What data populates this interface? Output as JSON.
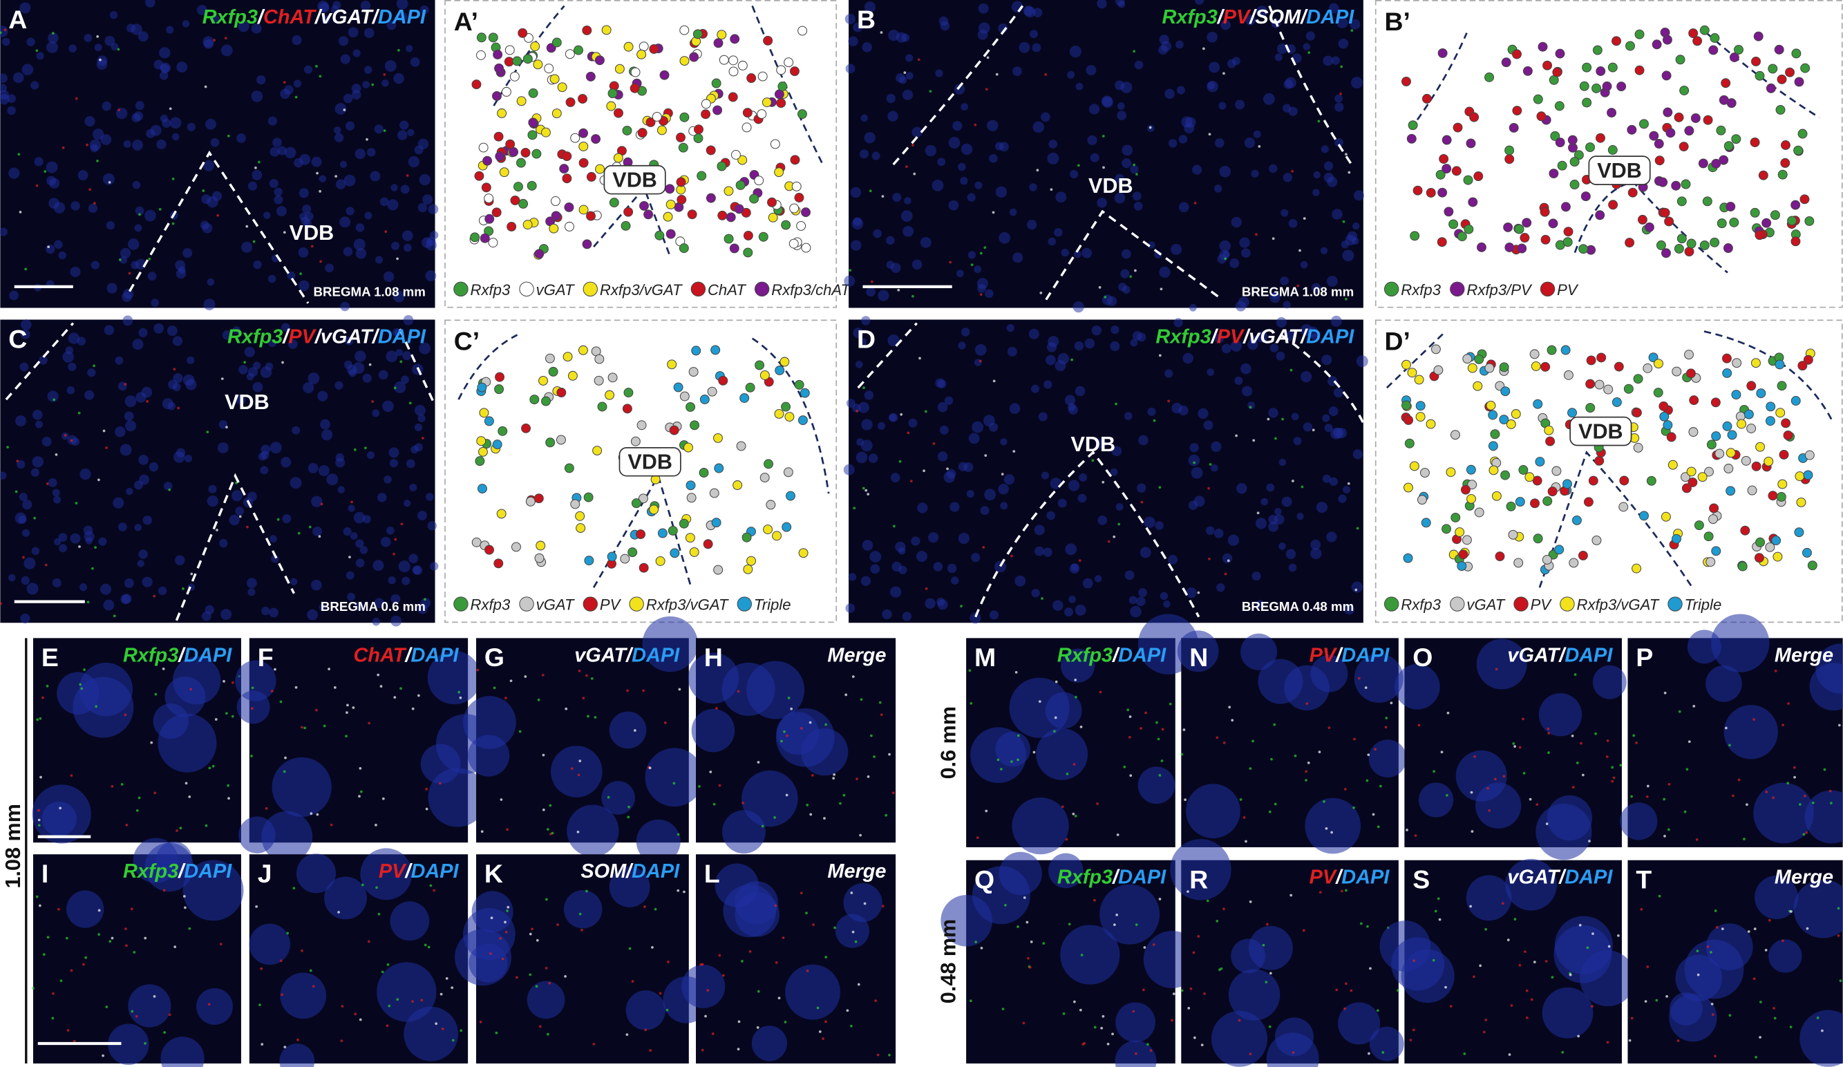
{
  "panels": [
    {
      "letter": "A",
      "kind": "image",
      "label": [
        {
          "text": "Rxfp3",
          "color": "#33cc33"
        },
        {
          "text": "/",
          "color": "#ffffff"
        },
        {
          "text": "ChAT",
          "color": "#e02020"
        },
        {
          "text": "/vGAT/",
          "color": "#ffffff"
        },
        {
          "text": "DAPI",
          "color": "#2a9df4"
        }
      ],
      "region": "VDB",
      "bregma": "BREGMA 1.08 mm"
    },
    {
      "letter": "A’",
      "kind": "schematic",
      "region": "VDB",
      "legend": [
        {
          "text": "Rxfp3",
          "color": "#3a9a3a"
        },
        {
          "text": "vGAT",
          "color": "#ffffff"
        },
        {
          "text": "Rxfp3/vGAT",
          "color": "#f2e21c"
        },
        {
          "text": "ChAT",
          "color": "#c8141e"
        },
        {
          "text": "Rxfp3/chAT",
          "color": "#7a1a8c"
        }
      ]
    },
    {
      "letter": "B",
      "kind": "image",
      "label": [
        {
          "text": "Rxfp3",
          "color": "#33cc33"
        },
        {
          "text": "/",
          "color": "#ffffff"
        },
        {
          "text": "PV",
          "color": "#e02020"
        },
        {
          "text": "/SOM/",
          "color": "#ffffff"
        },
        {
          "text": "DAPI",
          "color": "#2a9df4"
        }
      ],
      "region": "VDB",
      "bregma": "BREGMA 1.08 mm"
    },
    {
      "letter": "B’",
      "kind": "schematic",
      "region": "VDB",
      "legend": [
        {
          "text": "Rxfp3",
          "color": "#3a9a3a"
        },
        {
          "text": "Rxfp3/PV",
          "color": "#7a1a8c"
        },
        {
          "text": "PV",
          "color": "#c8141e"
        }
      ]
    },
    {
      "letter": "C",
      "kind": "image",
      "label": [
        {
          "text": "Rxfp3",
          "color": "#33cc33"
        },
        {
          "text": "/",
          "color": "#ffffff"
        },
        {
          "text": "PV",
          "color": "#e02020"
        },
        {
          "text": "/vGAT/",
          "color": "#ffffff"
        },
        {
          "text": "DAPI",
          "color": "#2a9df4"
        }
      ],
      "region": "VDB",
      "bregma": "BREGMA 0.6 mm"
    },
    {
      "letter": "C’",
      "kind": "schematic",
      "region": "VDB",
      "legend": [
        {
          "text": "Rxfp3",
          "color": "#3a9a3a"
        },
        {
          "text": "vGAT",
          "color": "#c8c8c8"
        },
        {
          "text": "PV",
          "color": "#c8141e"
        },
        {
          "text": "Rxfp3/vGAT",
          "color": "#f2e21c"
        },
        {
          "text": "Triple",
          "color": "#1f9bd1"
        }
      ]
    },
    {
      "letter": "D",
      "kind": "image",
      "label": [
        {
          "text": "Rxfp3",
          "color": "#33cc33"
        },
        {
          "text": "/",
          "color": "#ffffff"
        },
        {
          "text": "PV",
          "color": "#e02020"
        },
        {
          "text": "/vGAT/",
          "color": "#ffffff"
        },
        {
          "text": "DAPI",
          "color": "#2a9df4"
        }
      ],
      "region": "VDB",
      "bregma": "BREGMA 0.48 mm"
    },
    {
      "letter": "D’",
      "kind": "schematic",
      "region": "VDB",
      "legend": [
        {
          "text": "Rxfp3",
          "color": "#3a9a3a"
        },
        {
          "text": "vGAT",
          "color": "#c8c8c8"
        },
        {
          "text": "PV",
          "color": "#c8141e"
        },
        {
          "text": "Rxfp3/vGAT",
          "color": "#f2e21c"
        },
        {
          "text": "Triple",
          "color": "#1f9bd1"
        }
      ]
    },
    {
      "letter": "E",
      "kind": "small",
      "label": [
        {
          "text": "Rxfp3",
          "color": "#33cc33"
        },
        {
          "text": "/",
          "color": "#ffffff"
        },
        {
          "text": "DAPI",
          "color": "#2a9df4"
        }
      ]
    },
    {
      "letter": "F",
      "kind": "small",
      "label": [
        {
          "text": "ChAT",
          "color": "#e02020"
        },
        {
          "text": "/",
          "color": "#ffffff"
        },
        {
          "text": "DAPI",
          "color": "#2a9df4"
        }
      ]
    },
    {
      "letter": "G",
      "kind": "small",
      "label": [
        {
          "text": "vGAT",
          "color": "#ffffff"
        },
        {
          "text": "/",
          "color": "#ffffff"
        },
        {
          "text": "DAPI",
          "color": "#2a9df4"
        }
      ]
    },
    {
      "letter": "H",
      "kind": "small",
      "label": [
        {
          "text": "Merge",
          "color": "#ffffff"
        }
      ]
    },
    {
      "letter": "I",
      "kind": "small",
      "label": [
        {
          "text": "Rxfp3",
          "color": "#33cc33"
        },
        {
          "text": "/",
          "color": "#ffffff"
        },
        {
          "text": "DAPI",
          "color": "#2a9df4"
        }
      ]
    },
    {
      "letter": "J",
      "kind": "small",
      "label": [
        {
          "text": "PV",
          "color": "#e02020"
        },
        {
          "text": "/",
          "color": "#ffffff"
        },
        {
          "text": "DAPI",
          "color": "#2a9df4"
        }
      ]
    },
    {
      "letter": "K",
      "kind": "small",
      "label": [
        {
          "text": "SOM",
          "color": "#ffffff"
        },
        {
          "text": "/",
          "color": "#ffffff"
        },
        {
          "text": "DAPI",
          "color": "#2a9df4"
        }
      ]
    },
    {
      "letter": "L",
      "kind": "small",
      "label": [
        {
          "text": "Merge",
          "color": "#ffffff"
        }
      ]
    },
    {
      "letter": "M",
      "kind": "small",
      "label": [
        {
          "text": "Rxfp3",
          "color": "#33cc33"
        },
        {
          "text": "/",
          "color": "#ffffff"
        },
        {
          "text": "DAPI",
          "color": "#2a9df4"
        }
      ]
    },
    {
      "letter": "N",
      "kind": "small",
      "label": [
        {
          "text": "PV",
          "color": "#e02020"
        },
        {
          "text": "/",
          "color": "#ffffff"
        },
        {
          "text": "DAPI",
          "color": "#2a9df4"
        }
      ]
    },
    {
      "letter": "O",
      "kind": "small",
      "label": [
        {
          "text": "vGAT",
          "color": "#ffffff"
        },
        {
          "text": "/",
          "color": "#ffffff"
        },
        {
          "text": "DAPI",
          "color": "#2a9df4"
        }
      ]
    },
    {
      "letter": "P",
      "kind": "small",
      "label": [
        {
          "text": "Merge",
          "color": "#ffffff"
        }
      ]
    },
    {
      "letter": "Q",
      "kind": "small",
      "label": [
        {
          "text": "Rxfp3",
          "color": "#33cc33"
        },
        {
          "text": "/",
          "color": "#ffffff"
        },
        {
          "text": "DAPI",
          "color": "#2a9df4"
        }
      ]
    },
    {
      "letter": "R",
      "kind": "small",
      "label": [
        {
          "text": "PV",
          "color": "#e02020"
        },
        {
          "text": "/",
          "color": "#ffffff"
        },
        {
          "text": "DAPI",
          "color": "#2a9df4"
        }
      ]
    },
    {
      "letter": "S",
      "kind": "small",
      "label": [
        {
          "text": "vGAT",
          "color": "#ffffff"
        },
        {
          "text": "/",
          "color": "#ffffff"
        },
        {
          "text": "DAPI",
          "color": "#2a9df4"
        }
      ]
    },
    {
      "letter": "T",
      "kind": "small",
      "label": [
        {
          "text": "Merge",
          "color": "#ffffff"
        }
      ]
    }
  ],
  "row_labels": [
    "1.08 mm",
    "0.6 mm",
    "0.48 mm"
  ]
}
